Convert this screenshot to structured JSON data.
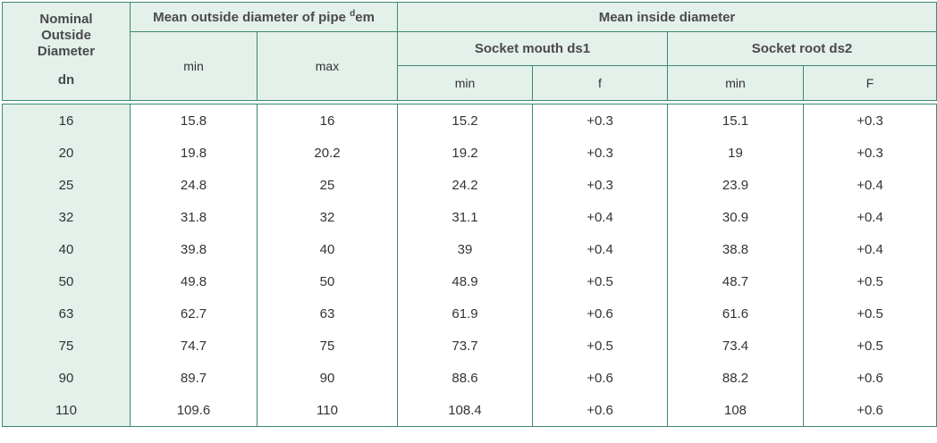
{
  "header": {
    "nominal_line1": "Nominal",
    "nominal_line2": "Outside",
    "nominal_line3": "Diameter",
    "nominal_symbol": "dn",
    "mean_outside_text": "Mean outside diameter of pipe ",
    "mean_outside_sup": "d",
    "mean_outside_suffix": "em",
    "mean_inside": "Mean inside diameter",
    "socket_mouth": "Socket mouth  ds1",
    "socket_root": "Socket root  ds2",
    "min": "min",
    "max": "max",
    "f": "f",
    "F": "F"
  },
  "rows": [
    [
      "16",
      "15.8",
      "16",
      "15.2",
      "+0.3",
      "15.1",
      "+0.3"
    ],
    [
      "20",
      "19.8",
      "20.2",
      "19.2",
      "+0.3",
      "19",
      "+0.3"
    ],
    [
      "25",
      "24.8",
      "25",
      "24.2",
      "+0.3",
      "23.9",
      "+0.4"
    ],
    [
      "32",
      "31.8",
      "32",
      "31.1",
      "+0.4",
      "30.9",
      "+0.4"
    ],
    [
      "40",
      "39.8",
      "40",
      "39",
      "+0.4",
      "38.8",
      "+0.4"
    ],
    [
      "50",
      "49.8",
      "50",
      "48.9",
      "+0.5",
      "48.7",
      "+0.5"
    ],
    [
      "63",
      "62.7",
      "63",
      "61.9",
      "+0.6",
      "61.6",
      "+0.5"
    ],
    [
      "75",
      "74.7",
      "75",
      "73.7",
      "+0.5",
      "73.4",
      "+0.5"
    ],
    [
      "90",
      "89.7",
      "90",
      "88.6",
      "+0.6",
      "88.2",
      "+0.6"
    ],
    [
      "110",
      "109.6",
      "110",
      "108.4",
      "+0.6",
      "108",
      "+0.6"
    ]
  ],
  "colors": {
    "border": "#3d8a6f",
    "header_bg": "#e4f0ea"
  }
}
